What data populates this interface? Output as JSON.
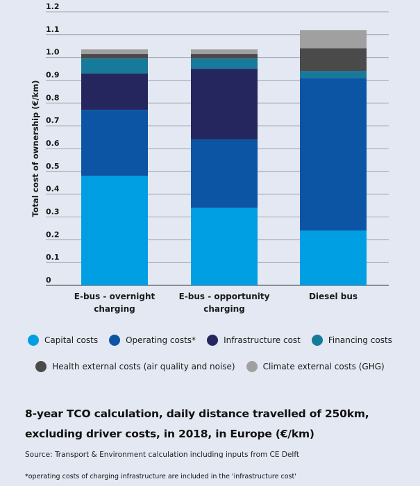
{
  "chart_data": {
    "type": "bar",
    "stacked": true,
    "categories": [
      [
        "E-bus - overnight",
        "charging"
      ],
      [
        "E-bus - opportunity",
        "charging"
      ],
      [
        "Diesel bus"
      ]
    ],
    "ylabel": "Total cost of ownership (€/km)",
    "ylim": [
      0,
      1.2
    ],
    "yticks": [
      {
        "value": 0,
        "label": "0"
      },
      {
        "value": 0.1,
        "label": "0.1"
      },
      {
        "value": 0.2,
        "label": "0.2"
      },
      {
        "value": 0.3,
        "label": "0.3"
      },
      {
        "value": 0.4,
        "label": "0.4"
      },
      {
        "value": 0.5,
        "label": "0.5"
      },
      {
        "value": 0.6,
        "label": "0.6"
      },
      {
        "value": 0.7,
        "label": "0.7"
      },
      {
        "value": 0.8,
        "label": "0.8"
      },
      {
        "value": 0.9,
        "label": "0.9"
      },
      {
        "value": 1.0,
        "label": "1.0"
      },
      {
        "value": 1.1,
        "label": "1.1"
      },
      {
        "value": 1.2,
        "label": "1.2"
      }
    ],
    "grid": true,
    "legend_position": "bottom",
    "series": [
      {
        "name": "Capital costs",
        "color": "#009fe3",
        "values": [
          0.48,
          0.34,
          0.24
        ]
      },
      {
        "name": "Operating costs*",
        "color": "#0c55a5",
        "values": [
          0.29,
          0.3,
          0.67
        ]
      },
      {
        "name": "Infrastructure cost",
        "color": "#26265f",
        "values": [
          0.16,
          0.31,
          0.0
        ]
      },
      {
        "name": "Financing costs",
        "color": "#177a9b",
        "values": [
          0.065,
          0.045,
          0.03
        ]
      },
      {
        "name": "Health external costs (air quality and noise)",
        "color": "#4a4a4a",
        "values": [
          0.02,
          0.02,
          0.1
        ]
      },
      {
        "name": "Climate external costs (GHG)",
        "color": "#a0a0a0",
        "values": [
          0.02,
          0.02,
          0.08
        ]
      }
    ]
  },
  "caption": {
    "title": "8-year TCO calculation, daily distance travelled of 250km, excluding driver costs, in 2018, in Europe (€/km)",
    "source": "Source: Transport & Environment calculation including inputs from CE Delft",
    "note": "*operating costs of charging infrastructure are included in the 'infrastructure cost'"
  }
}
